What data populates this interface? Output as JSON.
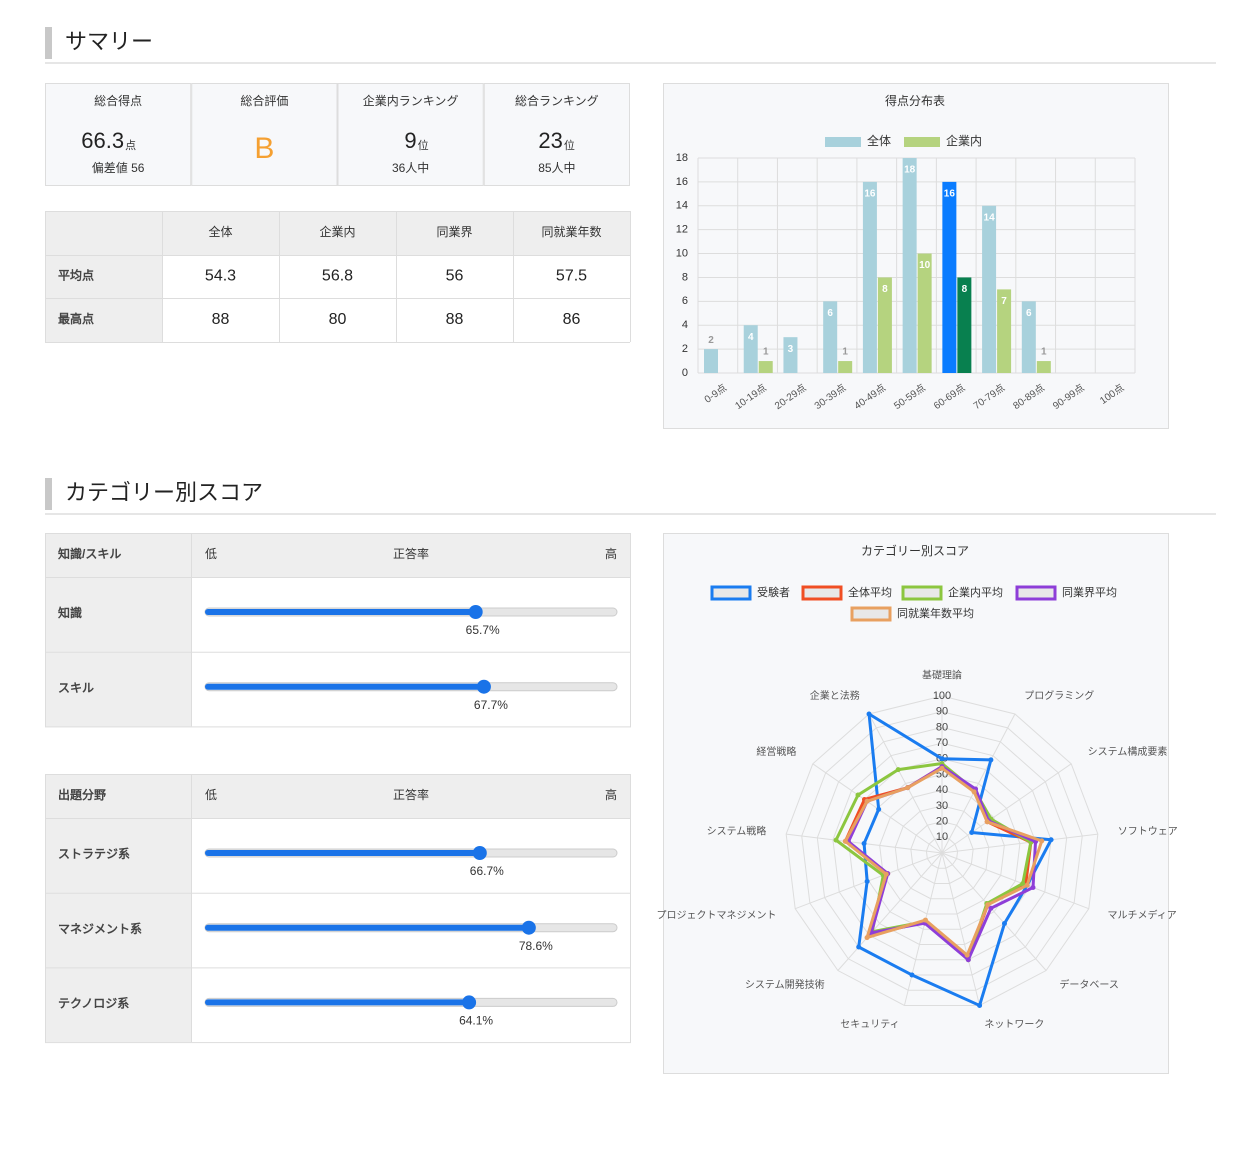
{
  "summary": {
    "title": "サマリー",
    "cards": [
      {
        "label": "総合得点",
        "value": 66.3,
        "unit": "点",
        "note": "偏差値 56"
      },
      {
        "label": "総合評価",
        "value": "B",
        "color": "#f5a031"
      },
      {
        "label": "企業内ランキング",
        "value": 9,
        "unit": "位",
        "note": "36人中"
      },
      {
        "label": "総合ランキング",
        "value": 23,
        "unit": "位",
        "note": "85人中"
      }
    ],
    "table": {
      "columns": [
        "全体",
        "企業内",
        "同業界",
        "同就業年数"
      ],
      "rows": [
        {
          "label": "平均点",
          "values": [
            54.3,
            56.8,
            56,
            57.5
          ]
        },
        {
          "label": "最高点",
          "values": [
            88,
            80,
            88,
            86
          ]
        }
      ]
    }
  },
  "category": {
    "title": "カテゴリー別スコア",
    "bar_color": "#1a73e8",
    "tables": [
      {
        "header": [
          "知識/スキル",
          "低",
          "正答率",
          "高"
        ],
        "scale": [
          0,
          100
        ],
        "rows": [
          {
            "label": "知識",
            "value": 65.7,
            "value_label": "65.7%"
          },
          {
            "label": "スキル",
            "value": 67.7,
            "value_label": "67.7%"
          }
        ]
      },
      {
        "header": [
          "出題分野",
          "低",
          "正答率",
          "高"
        ],
        "scale": [
          0,
          100
        ],
        "rows": [
          {
            "label": "ストラテジ系",
            "value": 66.7,
            "value_label": "66.7%"
          },
          {
            "label": "マネジメント系",
            "value": 78.6,
            "value_label": "78.6%"
          },
          {
            "label": "テクノロジ系",
            "value": 64.1,
            "value_label": "64.1%"
          }
        ]
      }
    ]
  },
  "chart_data": [
    {
      "type": "bar",
      "title": "得点分布表",
      "legend": "top",
      "grid": true,
      "categories": [
        "0-9点",
        "10-19点",
        "20-29点",
        "30-39点",
        "40-49点",
        "50-59点",
        "60-69点",
        "70-79点",
        "80-89点",
        "90-99点",
        "100点"
      ],
      "series": [
        {
          "name": "全体",
          "color": "#a8d1dc",
          "values": [
            2,
            4,
            3,
            6,
            16,
            18,
            16,
            14,
            6,
            0,
            0
          ]
        },
        {
          "name": "企業内",
          "color": "#b5d37f",
          "values": [
            0,
            1,
            0,
            1,
            8,
            10,
            8,
            7,
            1,
            0,
            0
          ]
        }
      ],
      "highlight": {
        "index": 6,
        "colors": [
          "#0a7cff",
          "#08804f"
        ]
      },
      "ylim": [
        0,
        18
      ],
      "yticks": [
        0,
        2,
        4,
        6,
        8,
        10,
        12,
        14,
        16,
        18
      ]
    },
    {
      "type": "radar",
      "title": "カテゴリー別スコア",
      "legend": "top",
      "categories": [
        "基礎理論",
        "プログラミング",
        "システム構成要素",
        "ソフトウェア",
        "マルチメディア",
        "データベース",
        "ネットワーク",
        "セキュリティ",
        "システム開発技術",
        "プロジェクトマネジメント",
        "システム戦略",
        "経営戦略",
        "企業と法務"
      ],
      "rlim": [
        0,
        100
      ],
      "rticks": [
        10,
        20,
        30,
        40,
        50,
        60,
        70,
        80,
        90,
        100
      ],
      "series": [
        {
          "name": "受験者",
          "color": "#1a7cf0",
          "values": [
            60,
            67,
            23,
            70,
            58,
            60,
            100,
            80,
            80,
            51,
            50,
            49,
            100
          ]
        },
        {
          "name": "全体平均",
          "color": "#f04e23",
          "values": [
            55,
            45,
            35,
            57,
            57,
            44,
            69,
            45,
            70,
            37,
            62,
            60,
            47
          ]
        },
        {
          "name": "企業内平均",
          "color": "#8cc63f",
          "values": [
            57,
            45,
            38,
            57,
            55,
            43,
            70,
            45,
            67,
            40,
            68,
            65,
            60
          ]
        },
        {
          "name": "同業界平均",
          "color": "#8e3ed8",
          "values": [
            55,
            46,
            36,
            60,
            62,
            47,
            70,
            46,
            68,
            37,
            60,
            58,
            47
          ]
        },
        {
          "name": "同就業年数平均",
          "color": "#e8a060",
          "values": [
            54,
            44,
            35,
            64,
            58,
            44,
            67,
            44,
            72,
            38,
            62,
            58,
            47
          ]
        }
      ]
    }
  ]
}
